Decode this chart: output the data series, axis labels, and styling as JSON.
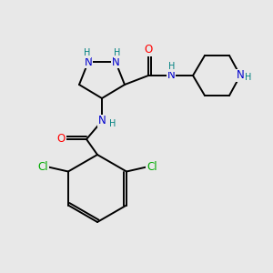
{
  "background_color": "#e8e8e8",
  "atom_colors": {
    "N": "#0000cd",
    "O": "#ff0000",
    "Cl": "#00aa00",
    "C": "#000000",
    "H": "#008080"
  },
  "bond_color": "#000000",
  "figsize": [
    3.0,
    3.0
  ],
  "dpi": 100
}
